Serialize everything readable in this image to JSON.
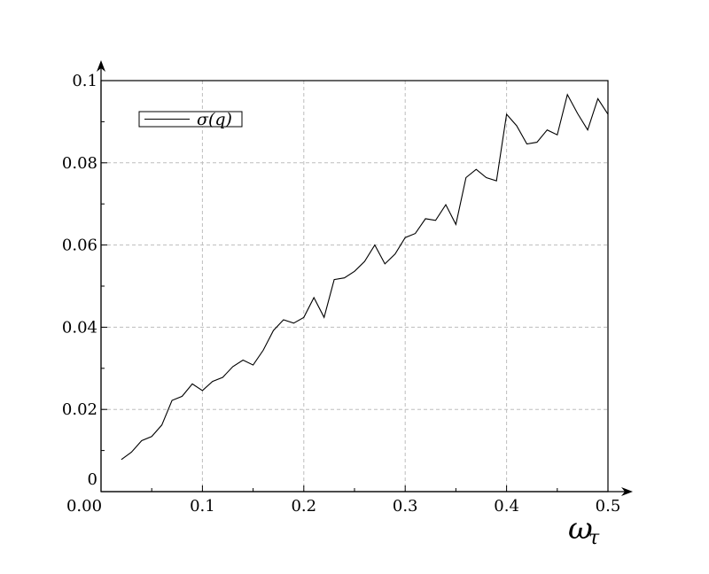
{
  "chart_data": {
    "type": "line",
    "title": "",
    "xlabel": "ω",
    "xlabel_subscript": "τ",
    "ylabel": "",
    "xlim": [
      0,
      0.5
    ],
    "ylim": [
      0,
      0.1
    ],
    "grid": true,
    "legend_position": "top-left",
    "x_ticks": [
      0.1,
      0.2,
      0.3,
      0.4,
      0.5
    ],
    "x_tick_labels": [
      "0.1",
      "0.2",
      "0.3",
      "0.4",
      "0.5"
    ],
    "x_origin_label": "0.00",
    "y_ticks": [
      0,
      0.02,
      0.04,
      0.06,
      0.08,
      0.1
    ],
    "y_tick_labels": [
      "0",
      "0.02",
      "0.04",
      "0.06",
      "0.08",
      "0.1"
    ],
    "series": [
      {
        "name": "σ(q)",
        "color": "#000000",
        "x": [
          0.02,
          0.03,
          0.04,
          0.05,
          0.06,
          0.07,
          0.08,
          0.09,
          0.1,
          0.11,
          0.12,
          0.13,
          0.14,
          0.15,
          0.16,
          0.17,
          0.18,
          0.19,
          0.2,
          0.21,
          0.22,
          0.23,
          0.24,
          0.25,
          0.26,
          0.27,
          0.28,
          0.29,
          0.3,
          0.31,
          0.32,
          0.33,
          0.34,
          0.35,
          0.36,
          0.37,
          0.38,
          0.39,
          0.4,
          0.41,
          0.42,
          0.43,
          0.44,
          0.45,
          0.46,
          0.47,
          0.48,
          0.49,
          0.5
        ],
        "y": [
          0.0078,
          0.0096,
          0.0124,
          0.0134,
          0.0162,
          0.0222,
          0.0232,
          0.0262,
          0.0246,
          0.0268,
          0.0278,
          0.0304,
          0.032,
          0.0308,
          0.0344,
          0.0392,
          0.0418,
          0.041,
          0.0424,
          0.0472,
          0.0424,
          0.0516,
          0.052,
          0.0536,
          0.056,
          0.06,
          0.0554,
          0.0578,
          0.0618,
          0.0628,
          0.0664,
          0.066,
          0.0698,
          0.065,
          0.0764,
          0.0784,
          0.0764,
          0.0756,
          0.0918,
          0.089,
          0.0846,
          0.085,
          0.088,
          0.0868,
          0.0966,
          0.092,
          0.088,
          0.0956,
          0.0918
        ]
      }
    ]
  }
}
